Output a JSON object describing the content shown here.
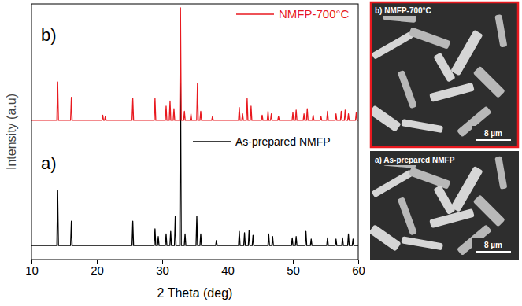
{
  "chart_data": {
    "type": "line",
    "x_label": "2 Theta (deg)",
    "y_label": "Intensity (a.u)",
    "xlim": [
      10,
      60
    ],
    "xticks": [
      10,
      20,
      30,
      40,
      50,
      60
    ],
    "ylim": [
      0,
      100
    ],
    "yticks": [],
    "tick_labels": "x",
    "legend": "right",
    "annotations": [
      "a)",
      "b)"
    ],
    "series": [
      {
        "name": "As-prepared NMFP",
        "color": "#000000",
        "x": [
          10,
          13.88,
          14,
          14.12,
          15.98,
          16.1,
          16.22,
          25.38,
          25.5,
          25.62,
          28.78,
          28.9,
          29.02,
          29.28,
          29.4,
          29.52,
          30.48,
          30.6,
          30.72,
          31.18,
          31.3,
          31.42,
          31.88,
          32,
          32.12,
          32.68,
          32.8,
          32.92,
          33.38,
          33.5,
          33.62,
          35.18,
          35.3,
          35.42,
          35.78,
          35.9,
          36.02,
          38.18,
          38.3,
          38.42,
          41.68,
          41.8,
          41.92,
          42.48,
          42.6,
          42.72,
          43.18,
          43.3,
          43.42,
          43.78,
          43.9,
          44.02,
          46.18,
          46.3,
          46.42,
          46.78,
          46.9,
          47.02,
          49.78,
          49.9,
          50.02,
          50.38,
          50.5,
          50.62,
          51.88,
          52,
          52.12,
          52.68,
          52.8,
          52.92,
          55.18,
          55.3,
          55.42,
          56.48,
          56.6,
          56.72,
          57.48,
          57.6,
          57.72,
          58.38,
          58.5,
          58.62,
          59.08,
          59.2,
          59.32,
          60
        ],
        "values": [
          5.5,
          5.5,
          27,
          5.5,
          5.5,
          15,
          5.5,
          5.5,
          15,
          5.5,
          5.5,
          12,
          5.5,
          5.5,
          9,
          5.5,
          5.5,
          10,
          5.5,
          5.5,
          11,
          5.5,
          5.5,
          17,
          5.5,
          5.5,
          78,
          5.5,
          5.5,
          10,
          5.5,
          5.5,
          17,
          5.5,
          5.5,
          10,
          5.5,
          5.5,
          7.5,
          5.5,
          5.5,
          11,
          5.5,
          5.5,
          10.5,
          5.5,
          5.5,
          11.5,
          5.5,
          5.5,
          9.5,
          5.5,
          5.5,
          10,
          5.5,
          5.5,
          9,
          5.5,
          5.5,
          8.5,
          5.5,
          5.5,
          9,
          5.5,
          5.5,
          11,
          5.5,
          5.5,
          8,
          5.5,
          5.5,
          8.5,
          5.5,
          5.5,
          8,
          5.5,
          5.5,
          8.5,
          5.5,
          5.5,
          10,
          5.5,
          5.5,
          8,
          5.5,
          5.5
        ]
      },
      {
        "name": "NMFP-700°C",
        "color": "#e8191f",
        "x": [
          10,
          13.88,
          14,
          14.12,
          15.98,
          16.1,
          16.22,
          20.78,
          20.9,
          21.02,
          21.18,
          21.3,
          21.42,
          25.38,
          25.5,
          25.62,
          28.78,
          28.9,
          29.02,
          30.48,
          30.6,
          30.72,
          31.08,
          31.2,
          31.32,
          31.68,
          31.8,
          31.92,
          32.68,
          32.8,
          32.92,
          33.28,
          33.4,
          33.52,
          34.28,
          34.4,
          34.52,
          35.28,
          35.4,
          35.52,
          35.78,
          35.9,
          36.02,
          37.58,
          37.7,
          37.82,
          41.68,
          41.8,
          41.92,
          42.18,
          42.3,
          42.42,
          42.88,
          43,
          43.12,
          43.48,
          43.6,
          43.72,
          45.18,
          45.3,
          45.42,
          46.08,
          46.2,
          46.32,
          46.58,
          46.7,
          46.82,
          47.68,
          47.8,
          47.92,
          49.88,
          50,
          50.12,
          50.38,
          50.5,
          50.62,
          51.58,
          51.7,
          51.82,
          52.08,
          52.2,
          52.32,
          52.98,
          53.1,
          53.22,
          54.18,
          54.3,
          54.42,
          55.18,
          55.3,
          55.42,
          56.48,
          56.6,
          56.72,
          57.28,
          57.4,
          57.52,
          57.88,
          58,
          58.12,
          58.38,
          58.5,
          58.62,
          59.58,
          59.7,
          59.82,
          60
        ],
        "values": [
          54.5,
          54.5,
          69.5,
          54.5,
          54.5,
          63.5,
          54.5,
          54.5,
          56.5,
          54.5,
          54.5,
          56,
          54.5,
          54.5,
          63,
          54.5,
          54.5,
          63,
          54.5,
          54.5,
          60,
          54.5,
          54.5,
          62,
          54.5,
          54.5,
          59,
          54.5,
          54.5,
          98.5,
          54.5,
          54.5,
          58,
          54.5,
          54.5,
          57,
          54.5,
          54.5,
          69,
          54.5,
          54.5,
          58,
          54.5,
          54.5,
          56,
          54.5,
          54.5,
          59.5,
          54.5,
          54.5,
          57,
          54.5,
          54.5,
          63,
          54.5,
          54.5,
          60,
          54.5,
          54.5,
          56.5,
          54.5,
          54.5,
          58,
          54.5,
          54.5,
          57,
          54.5,
          54.5,
          56,
          54.5,
          54.5,
          57.5,
          54.5,
          54.5,
          58.5,
          54.5,
          54.5,
          57,
          54.5,
          54.5,
          59,
          54.5,
          54.5,
          56.5,
          54.5,
          54.5,
          56,
          54.5,
          54.5,
          58,
          54.5,
          54.5,
          57,
          54.5,
          54.5,
          58,
          54.5,
          54.5,
          58.5,
          54.5,
          54.5,
          57,
          54.5,
          54.5,
          57.5,
          54.5,
          54.5
        ]
      }
    ]
  },
  "images": [
    {
      "title": "b) NMFP-700°C",
      "scale_bar": "8 µm"
    },
    {
      "title": "a) As-prepared NMFP",
      "scale_bar": "8 µm"
    }
  ]
}
